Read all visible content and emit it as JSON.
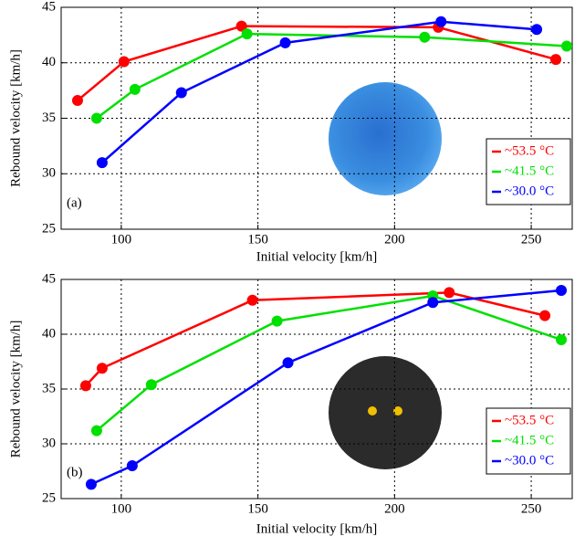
{
  "chart_data": [
    {
      "type": "line",
      "panel_label": "(a)",
      "x_label": "Initial velocity [km/h]",
      "y_label": "Rebound velocity [km/h]",
      "xlim": [
        78,
        265
      ],
      "xticks": [
        100,
        150,
        200,
        250
      ],
      "ylim": [
        25,
        45
      ],
      "yticks": [
        25,
        30,
        35,
        40,
        45
      ],
      "grid": true,
      "legend": "lower right",
      "series": [
        {
          "name": "~53.5 °C",
          "color": "#ff0000",
          "x": [
            84,
            101,
            144,
            216,
            259
          ],
          "values": [
            36.6,
            40.1,
            43.3,
            43.2,
            40.3
          ]
        },
        {
          "name": "~41.5 °C",
          "color": "#00e000",
          "x": [
            91,
            105,
            146,
            211,
            263
          ],
          "values": [
            35.0,
            37.6,
            42.6,
            42.3,
            41.5
          ]
        },
        {
          "name": "~30.0 °C",
          "color": "#0000ff",
          "x": [
            93,
            122,
            160,
            217,
            252
          ],
          "values": [
            31.0,
            37.3,
            41.8,
            43.7,
            43.0
          ]
        }
      ]
    },
    {
      "type": "line",
      "panel_label": "(b)",
      "x_label": "Initial velocity [km/h]",
      "y_label": "Rebound velocity [km/h]",
      "xlim": [
        78,
        265
      ],
      "xticks": [
        100,
        150,
        200,
        250
      ],
      "ylim": [
        25,
        45
      ],
      "yticks": [
        25,
        30,
        35,
        40,
        45
      ],
      "grid": true,
      "legend": "lower right",
      "series": [
        {
          "name": "~53.5 °C",
          "color": "#ff0000",
          "x": [
            87,
            93,
            148,
            220,
            255
          ],
          "values": [
            35.3,
            36.9,
            43.1,
            43.8,
            41.7
          ]
        },
        {
          "name": "~41.5 °C",
          "color": "#00e000",
          "x": [
            91,
            111,
            157,
            214,
            261
          ],
          "values": [
            31.2,
            35.4,
            41.2,
            43.5,
            39.5
          ]
        },
        {
          "name": "~30.0 °C",
          "color": "#0000ff",
          "x": [
            89,
            104,
            161,
            214,
            261
          ],
          "values": [
            26.3,
            28.0,
            37.4,
            42.9,
            44.0
          ]
        }
      ]
    }
  ]
}
